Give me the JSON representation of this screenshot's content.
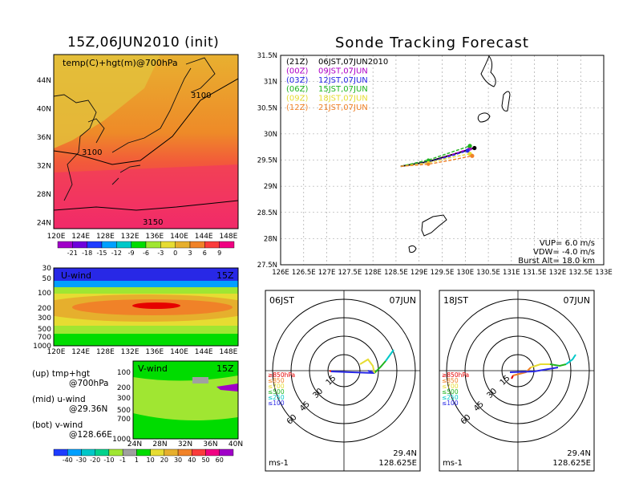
{
  "left_title": "15Z,06JUN2010 (init)",
  "main_title": "Sonde Tracking Forecast",
  "map_panel": {
    "label": "temp(C)+hgt(m)@700hPa",
    "lat_ticks": [
      "44N",
      "40N",
      "36N",
      "32N",
      "28N",
      "24N"
    ],
    "lon_ticks": [
      "120E",
      "124E",
      "128E",
      "132E",
      "136E",
      "140E",
      "144E",
      "148E"
    ],
    "contours": [
      "3100",
      "3100",
      "3150"
    ],
    "colorbar_labels": [
      "-21",
      "-18",
      "-15",
      "-12",
      "-9",
      "-6",
      "-3",
      "0",
      "3",
      "6",
      "9"
    ],
    "colorbar_colors": [
      "#a000c8",
      "#6e00dc",
      "#1e3cff",
      "#00a0ff",
      "#00c8c8",
      "#00dc00",
      "#a0e632",
      "#e6dc32",
      "#e6af2d",
      "#f08228",
      "#fa3c3c",
      "#f00082"
    ]
  },
  "u_panel": {
    "label": "U-wind",
    "time": "15Z",
    "p_ticks": [
      "30",
      "50",
      "100",
      "200",
      "300",
      "500",
      "700",
      "1000"
    ],
    "lon_ticks": [
      "120E",
      "124E",
      "128E",
      "132E",
      "136E",
      "140E",
      "144E",
      "148E"
    ]
  },
  "v_panel": {
    "label": "V-wind",
    "time": "15Z",
    "p_ticks": [
      "100",
      "200",
      "300",
      "500",
      "700",
      "1000"
    ],
    "lat_ticks": [
      "24N",
      "28N",
      "32N",
      "36N",
      "40N"
    ]
  },
  "wind_colorbar": {
    "labels": [
      "-40",
      "-30",
      "-20",
      "-10",
      "-1",
      "1",
      "10",
      "20",
      "30",
      "40",
      "50",
      "60"
    ],
    "colors": [
      "#1e3cff",
      "#00a0ff",
      "#00c8c8",
      "#00d28c",
      "#a0e632",
      "#a0a0a0",
      "#00dc00",
      "#e6dc32",
      "#e6af2d",
      "#f08228",
      "#fa3c3c",
      "#f00082",
      "#a000c8"
    ]
  },
  "legend_notes": [
    [
      "(up) tmp+hgt",
      "@700hPa"
    ],
    [
      "(mid) u-wind",
      "@29.36N"
    ],
    [
      "(bot) v-wind",
      "@128.66E"
    ]
  ],
  "track_panel": {
    "lat_ticks": [
      "31.5N",
      "31N",
      "30.5N",
      "30N",
      "29.5N",
      "29N",
      "28.5N",
      "28N",
      "27.5N"
    ],
    "lon_ticks": [
      "126E",
      "126.5E",
      "127E",
      "127.5E",
      "128E",
      "128.5E",
      "129E",
      "129.5E",
      "130E",
      "130.5E",
      "131E",
      "131.5E",
      "132E",
      "132.5E",
      "133E"
    ],
    "legend": [
      {
        "code": "(21Z)",
        "time": "06JST,07JUN2010",
        "color": "#000000"
      },
      {
        "code": "(00Z)",
        "time": "09JST,07JUN",
        "color": "#b000c8"
      },
      {
        "code": "(03Z)",
        "time": "12JST,07JUN",
        "color": "#2828e6"
      },
      {
        "code": "(06Z)",
        "time": "15JST,07JUN",
        "color": "#1eb41e"
      },
      {
        "code": "(09Z)",
        "time": "18JST,07JUN",
        "color": "#e6dc32"
      },
      {
        "code": "(12Z)",
        "time": "21JST,07JUN",
        "color": "#f08228"
      }
    ],
    "vup": "VUP=  6.0  m/s",
    "vdw": "VDW= -4.0  m/s",
    "burst": "Burst Alt= 18.0  km"
  },
  "polar_left": {
    "time": "06JST",
    "date": "07JUN",
    "ring_labels": [
      "15",
      "30",
      "45",
      "60"
    ],
    "unit": "ms-1",
    "lat": "29.4N",
    "lon": "128.625E",
    "levels": [
      {
        "label": "≥850hPa",
        "color": "#e60000"
      },
      {
        "label": "≤850",
        "color": "#f08228"
      },
      {
        "label": "≤700",
        "color": "#e6dc32"
      },
      {
        "label": "≤500",
        "color": "#1eb41e"
      },
      {
        "label": "≤250",
        "color": "#00c8c8"
      },
      {
        "label": "≤100",
        "color": "#2828e6"
      }
    ]
  },
  "polar_right": {
    "time": "18JST",
    "date": "07JUN",
    "ring_labels": [
      "15",
      "30",
      "45",
      "60"
    ],
    "unit": "ms-1",
    "lat": "29.4N",
    "lon": "128.625E",
    "levels": [
      {
        "label": "≥850hPa",
        "color": "#e60000"
      },
      {
        "label": "≤850",
        "color": "#f08228"
      },
      {
        "label": "≤700",
        "color": "#e6dc32"
      },
      {
        "label": "≤500",
        "color": "#1eb41e"
      },
      {
        "label": "≤250",
        "color": "#00c8c8"
      },
      {
        "label": "≤100",
        "color": "#2828e6"
      }
    ]
  },
  "chart_data": {
    "type": "line",
    "title": "Sonde Tracking Forecast",
    "xlim": [
      126,
      133
    ],
    "ylim": [
      27.5,
      31.5
    ],
    "series": [
      {
        "name": "(21Z) 06JST,07JUN2010",
        "x": [
          128.6,
          129.2,
          129.7,
          130.2
        ],
        "y": [
          29.38,
          29.47,
          29.6,
          29.73
        ]
      },
      {
        "name": "(00Z) 09JST,07JUN",
        "x": [
          128.6,
          129.2,
          129.7,
          130.1
        ],
        "y": [
          29.38,
          29.45,
          29.6,
          29.72
        ]
      },
      {
        "name": "(03Z) 12JST,07JUN",
        "x": [
          128.6,
          129.2,
          129.7,
          130.05
        ],
        "y": [
          29.38,
          29.46,
          29.58,
          29.68
        ]
      },
      {
        "name": "(06Z) 15JST,07JUN",
        "x": [
          128.6,
          129.2,
          129.7,
          130.1
        ],
        "y": [
          29.38,
          29.5,
          29.65,
          29.77
        ]
      },
      {
        "name": "(09Z) 18JST,07JUN",
        "x": [
          128.6,
          129.2,
          129.7,
          130.1
        ],
        "y": [
          29.38,
          29.45,
          29.55,
          29.62
        ]
      },
      {
        "name": "(12Z) 21JST,07JUN",
        "x": [
          128.6,
          129.2,
          129.7,
          130.15
        ],
        "y": [
          29.38,
          29.42,
          29.5,
          29.58
        ]
      }
    ]
  }
}
